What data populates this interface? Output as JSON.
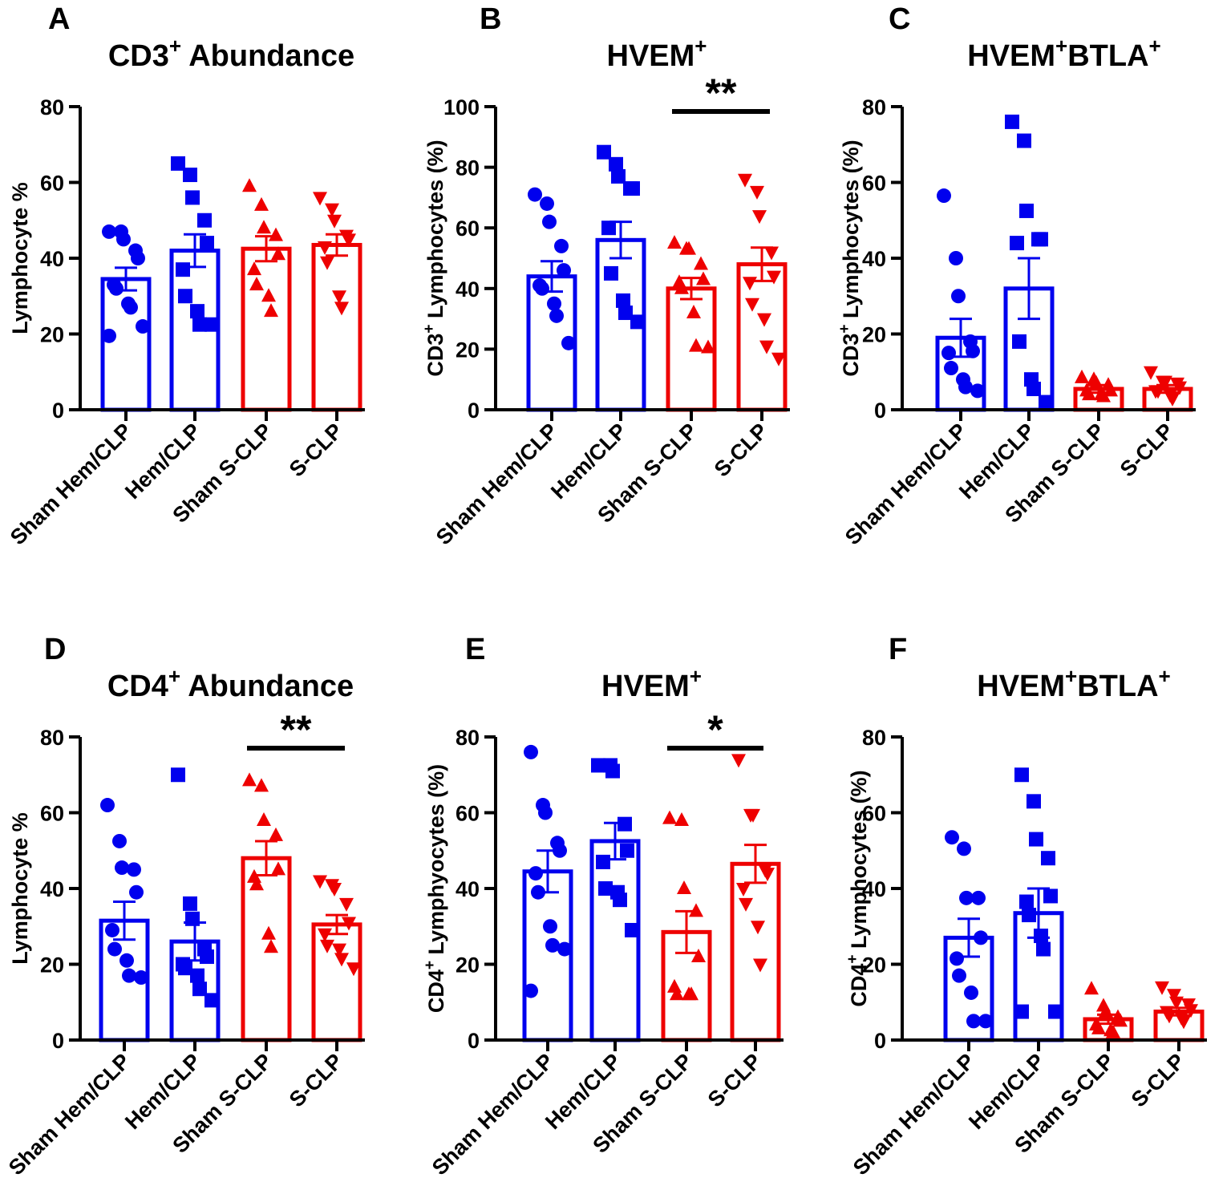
{
  "colors": {
    "blue": "#0000ee",
    "red": "#ee0000",
    "axis": "#000000"
  },
  "chart_data": [
    {
      "panel": "A",
      "type": "bar",
      "title": "CD3",
      "title_sup": "+",
      "title_rest": " Abundance",
      "ylabel": "Lymphocyte %",
      "ylabel_sup": "",
      "ylabel_rest": "",
      "ylim": [
        0,
        80
      ],
      "yticks": [
        0,
        20,
        40,
        60,
        80
      ],
      "categories": [
        "Sham Hem/CLP",
        "Hem/CLP",
        "Sham S-CLP",
        "S-CLP"
      ],
      "means": [
        34.5,
        42,
        42.5,
        43.5
      ],
      "sems": [
        3,
        4.3,
        3.3,
        2.8
      ],
      "markers": [
        "circle",
        "square",
        "triangle-up",
        "triangle-down"
      ],
      "points": [
        [
          47,
          47,
          45,
          42,
          40,
          33,
          32,
          28,
          27,
          22,
          19.5
        ],
        [
          65,
          62,
          56,
          50,
          44,
          37,
          30,
          26,
          22.5,
          22.5
        ],
        [
          59,
          54,
          48,
          46,
          41,
          37,
          33,
          30,
          26
        ],
        [
          56,
          53,
          50,
          46,
          45,
          43,
          39,
          30,
          27
        ]
      ],
      "significance": null
    },
    {
      "panel": "B",
      "type": "bar",
      "title": "HVEM",
      "title_sup": "+",
      "title_rest": "",
      "ylabel": "CD3",
      "ylabel_sup": "+",
      "ylabel_rest": " Lymphocytes (%)",
      "ylim": [
        0,
        100
      ],
      "yticks": [
        0,
        20,
        40,
        60,
        80,
        100
      ],
      "categories": [
        "Sham Hem/CLP",
        "Hem/CLP",
        "Sham S-CLP",
        "S-CLP"
      ],
      "means": [
        44,
        56,
        40,
        48
      ],
      "sems": [
        5,
        6,
        3.5,
        5.5
      ],
      "markers": [
        "circle",
        "square",
        "triangle-up",
        "triangle-down"
      ],
      "points": [
        [
          71,
          68,
          62,
          54,
          46,
          41,
          40,
          35,
          31,
          22
        ],
        [
          85,
          81,
          77,
          73,
          73,
          60,
          45,
          36,
          32,
          29
        ],
        [
          55,
          53,
          53,
          48,
          43,
          42,
          40,
          32,
          21,
          20.5
        ],
        [
          76,
          72,
          64,
          52,
          44,
          42,
          35,
          30,
          21,
          17
        ]
      ],
      "significance": {
        "from": 2,
        "to": 3,
        "label": "**",
        "y": 98
      }
    },
    {
      "panel": "C",
      "type": "bar",
      "title": "HVEM",
      "title_sup": "+",
      "title_rest": "BTLA",
      "title_sup2": "+",
      "ylabel": "CD3",
      "ylabel_sup": "+",
      "ylabel_rest": " Lymphocytes (%)",
      "ylim": [
        0,
        80
      ],
      "yticks": [
        0,
        20,
        40,
        60,
        80
      ],
      "categories": [
        "Sham Hem/CLP",
        "Hem/CLP",
        "Sham S-CLP",
        "S-CLP"
      ],
      "means": [
        19,
        32,
        5.5,
        5.5
      ],
      "sems": [
        5,
        8,
        1,
        1
      ],
      "markers": [
        "circle",
        "square",
        "triangle-up",
        "triangle-down"
      ],
      "points": [
        [
          56.5,
          40,
          30,
          18,
          15.5,
          15,
          11,
          8,
          6,
          5
        ],
        [
          76,
          71,
          52.5,
          45,
          45,
          44,
          18,
          8,
          5.5,
          2
        ],
        [
          8.5,
          8,
          7,
          6.5,
          5,
          5,
          4,
          4,
          3.5
        ],
        [
          10,
          7.5,
          7.5,
          7,
          6,
          5,
          5,
          4,
          3
        ]
      ],
      "significance": null
    },
    {
      "panel": "D",
      "type": "bar",
      "title": "CD4",
      "title_sup": "+",
      "title_rest": " Abundance",
      "ylabel": "Lymphocyte %",
      "ylabel_sup": "",
      "ylabel_rest": "",
      "ylim": [
        0,
        80
      ],
      "yticks": [
        0,
        20,
        40,
        60,
        80
      ],
      "categories": [
        "Sham Hem/CLP",
        "Hem/CLP",
        "Sham S-CLP",
        "S-CLP"
      ],
      "means": [
        31.5,
        26,
        48,
        30.5
      ],
      "sems": [
        5,
        5,
        4.5,
        2.5
      ],
      "markers": [
        "circle",
        "square",
        "triangle-up",
        "triangle-down"
      ],
      "points": [
        [
          62,
          52.5,
          45.5,
          45,
          39,
          29,
          24,
          21,
          17,
          16.5
        ],
        [
          70,
          36,
          32,
          24,
          22,
          20,
          19,
          17,
          13.5,
          10.5
        ],
        [
          68.5,
          67,
          58,
          54,
          45,
          43,
          41,
          28,
          24.5
        ],
        [
          42,
          41,
          40,
          36,
          31,
          28,
          25,
          24,
          21.5,
          19
        ]
      ],
      "significance": {
        "from": 2,
        "to": 3,
        "label": "**",
        "y": 77
      }
    },
    {
      "panel": "E",
      "type": "bar",
      "title": "HVEM",
      "title_sup": "+",
      "title_rest": "",
      "ylabel": "CD4",
      "ylabel_sup": "+",
      "ylabel_rest": " Lymphyocytes (%)",
      "ylim": [
        0,
        80
      ],
      "yticks": [
        0,
        20,
        40,
        60,
        80
      ],
      "categories": [
        "Sham Hem/CLP",
        "Hem/CLP",
        "Sham S-CLP",
        "S-CLP"
      ],
      "means": [
        44.5,
        52.5,
        28.5,
        46.5
      ],
      "sems": [
        5.5,
        4.8,
        5.5,
        5
      ],
      "markers": [
        "circle",
        "square",
        "triangle-up",
        "triangle-down"
      ],
      "points": [
        [
          76,
          62,
          60,
          52,
          50,
          44,
          39,
          30,
          25,
          24,
          13
        ],
        [
          72.5,
          72.5,
          71,
          57,
          50,
          47,
          40,
          39,
          37,
          29
        ],
        [
          58.5,
          58,
          40,
          34,
          22,
          14,
          12,
          12,
          12
        ],
        [
          74,
          59.5,
          59.5,
          45,
          44,
          40,
          36,
          30,
          20
        ]
      ],
      "significance": {
        "from": 2,
        "to": 3,
        "label": "*",
        "y": 77
      }
    },
    {
      "panel": "F",
      "type": "bar",
      "title": "HVEM",
      "title_sup": "+",
      "title_rest": "BTLA",
      "title_sup2": "+",
      "ylabel": "CD4",
      "ylabel_sup": "+",
      "ylabel_rest": " Lymphocytes (%)",
      "ylim": [
        0,
        80
      ],
      "yticks": [
        0,
        20,
        40,
        60,
        80
      ],
      "categories": [
        "Sham Hem/CLP",
        "Hem/CLP",
        "Sham S-CLP",
        "S-CLP"
      ],
      "means": [
        27,
        33.5,
        5.5,
        7.5
      ],
      "sems": [
        5,
        6.5,
        1.2,
        1
      ],
      "markers": [
        "circle",
        "square",
        "triangle-up",
        "triangle-down"
      ],
      "points": [
        [
          53.5,
          50.5,
          37.5,
          37.5,
          27,
          21.5,
          17,
          12.5,
          5,
          5
        ],
        [
          70,
          63,
          53,
          48,
          38,
          36.5,
          33,
          27.5,
          24,
          7.5,
          7.5
        ],
        [
          13.5,
          9,
          7.5,
          6,
          5,
          4,
          3,
          2.5,
          2
        ],
        [
          14,
          12,
          10,
          9.5,
          8,
          7.5,
          6.5,
          6,
          5
        ]
      ],
      "significance": null
    }
  ]
}
